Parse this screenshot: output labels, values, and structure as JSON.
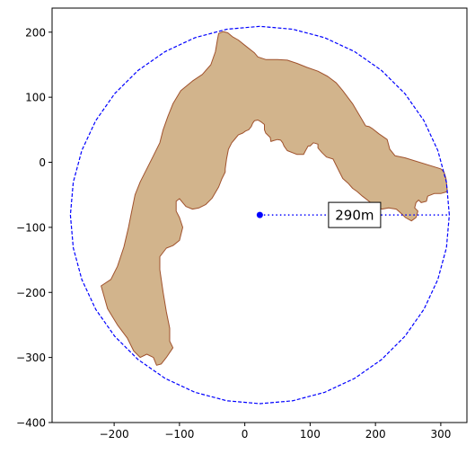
{
  "chart_data": {
    "type": "scatter",
    "title": "",
    "xlabel": "",
    "ylabel": "",
    "xlim": [
      -295,
      340
    ],
    "ylim": [
      -400,
      237
    ],
    "x_ticks": [
      -200,
      -100,
      0,
      100,
      200,
      300
    ],
    "y_ticks": [
      -400,
      -300,
      -200,
      -100,
      0,
      100,
      200
    ],
    "x_tick_labels": [
      "−200",
      "−100",
      "0",
      "100",
      "200",
      "300"
    ],
    "y_tick_labels": [
      "−400",
      "−300",
      "−200",
      "−100",
      "0",
      "100",
      "200"
    ],
    "grid": false,
    "legend": "none",
    "center": {
      "x": 23,
      "y": -81
    },
    "radius": 290,
    "radius_label": "290m",
    "colors": {
      "shape_fill": "#d2b48c",
      "shape_edge": "#a0522d",
      "circle": "#0000ff",
      "center": "#0000ff",
      "radius_line": "#0000ff",
      "label_box_bg": "#ffffff",
      "label_box_edge": "#000000"
    },
    "shape": {
      "points": [
        [
          -40,
          198
        ],
        [
          -33,
          201
        ],
        [
          -26,
          199
        ],
        [
          -19,
          193
        ],
        [
          -10,
          188
        ],
        [
          0,
          180
        ],
        [
          15,
          168
        ],
        [
          20,
          162
        ],
        [
          32,
          158
        ],
        [
          50,
          158
        ],
        [
          65,
          157
        ],
        [
          80,
          152
        ],
        [
          95,
          146
        ],
        [
          112,
          140
        ],
        [
          127,
          132
        ],
        [
          140,
          122
        ],
        [
          150,
          110
        ],
        [
          165,
          90
        ],
        [
          178,
          68
        ],
        [
          185,
          56
        ],
        [
          190,
          55
        ],
        [
          195,
          52
        ],
        [
          205,
          44
        ],
        [
          218,
          35
        ],
        [
          222,
          20
        ],
        [
          230,
          10
        ],
        [
          245,
          7
        ],
        [
          300,
          -10
        ],
        [
          305,
          -15
        ],
        [
          308,
          -25
        ],
        [
          310,
          -45
        ],
        [
          300,
          -48
        ],
        [
          290,
          -48
        ],
        [
          280,
          -52
        ],
        [
          278,
          -60
        ],
        [
          270,
          -62
        ],
        [
          266,
          -58
        ],
        [
          262,
          -62
        ],
        [
          260,
          -70
        ],
        [
          265,
          -75
        ],
        [
          262,
          -85
        ],
        [
          255,
          -90
        ],
        [
          246,
          -85
        ],
        [
          240,
          -79
        ],
        [
          232,
          -72
        ],
        [
          220,
          -70
        ],
        [
          210,
          -72
        ],
        [
          200,
          -68
        ],
        [
          190,
          -60
        ],
        [
          180,
          -52
        ],
        [
          172,
          -45
        ],
        [
          165,
          -40
        ],
        [
          158,
          -32
        ],
        [
          150,
          -25
        ],
        [
          145,
          -15
        ],
        [
          140,
          -5
        ],
        [
          135,
          5
        ],
        [
          125,
          8
        ],
        [
          118,
          15
        ],
        [
          112,
          22
        ],
        [
          112,
          28
        ],
        [
          105,
          30
        ],
        [
          100,
          25
        ],
        [
          97,
          25
        ],
        [
          93,
          18
        ],
        [
          90,
          12
        ],
        [
          80,
          12
        ],
        [
          65,
          18
        ],
        [
          60,
          25
        ],
        [
          58,
          30
        ],
        [
          55,
          34
        ],
        [
          50,
          35
        ],
        [
          43,
          33
        ],
        [
          40,
          32
        ],
        [
          39,
          38
        ],
        [
          32,
          45
        ],
        [
          30,
          50
        ],
        [
          30,
          58
        ],
        [
          25,
          62
        ],
        [
          20,
          65
        ],
        [
          15,
          64
        ],
        [
          12,
          60
        ],
        [
          10,
          55
        ],
        [
          6,
          50
        ],
        [
          1,
          48
        ],
        [
          -3,
          45
        ],
        [
          -10,
          42
        ],
        [
          -15,
          36
        ],
        [
          -20,
          30
        ],
        [
          -25,
          20
        ],
        [
          -28,
          5
        ],
        [
          -30,
          -10
        ],
        [
          -30,
          -15
        ],
        [
          -35,
          -25
        ],
        [
          -40,
          -38
        ],
        [
          -50,
          -55
        ],
        [
          -60,
          -65
        ],
        [
          -70,
          -70
        ],
        [
          -80,
          -72
        ],
        [
          -90,
          -68
        ],
        [
          -95,
          -62
        ],
        [
          -100,
          -56
        ],
        [
          -105,
          -60
        ],
        [
          -105,
          -75
        ],
        [
          -100,
          -85
        ],
        [
          -95,
          -100
        ],
        [
          -100,
          -120
        ],
        [
          -110,
          -128
        ],
        [
          -120,
          -132
        ],
        [
          -130,
          -145
        ],
        [
          -130,
          -165
        ],
        [
          -125,
          -200
        ],
        [
          -120,
          -230
        ],
        [
          -115,
          -255
        ],
        [
          -115,
          -275
        ],
        [
          -110,
          -285
        ],
        [
          -120,
          -300
        ],
        [
          -128,
          -310
        ],
        [
          -135,
          -312
        ],
        [
          -140,
          -300
        ],
        [
          -150,
          -295
        ],
        [
          -160,
          -300
        ],
        [
          -170,
          -290
        ],
        [
          -180,
          -270
        ],
        [
          -195,
          -250
        ],
        [
          -210,
          -225
        ],
        [
          -220,
          -190
        ],
        [
          -205,
          -180
        ],
        [
          -195,
          -160
        ],
        [
          -185,
          -130
        ],
        [
          -178,
          -100
        ],
        [
          -174,
          -80
        ],
        [
          -168,
          -50
        ],
        [
          -160,
          -30
        ],
        [
          -150,
          -10
        ],
        [
          -140,
          10
        ],
        [
          -130,
          30
        ],
        [
          -125,
          50
        ],
        [
          -118,
          70
        ],
        [
          -110,
          90
        ],
        [
          -98,
          110
        ],
        [
          -80,
          125
        ],
        [
          -65,
          135
        ],
        [
          -52,
          150
        ],
        [
          -45,
          170
        ],
        [
          -42,
          188
        ]
      ]
    }
  }
}
